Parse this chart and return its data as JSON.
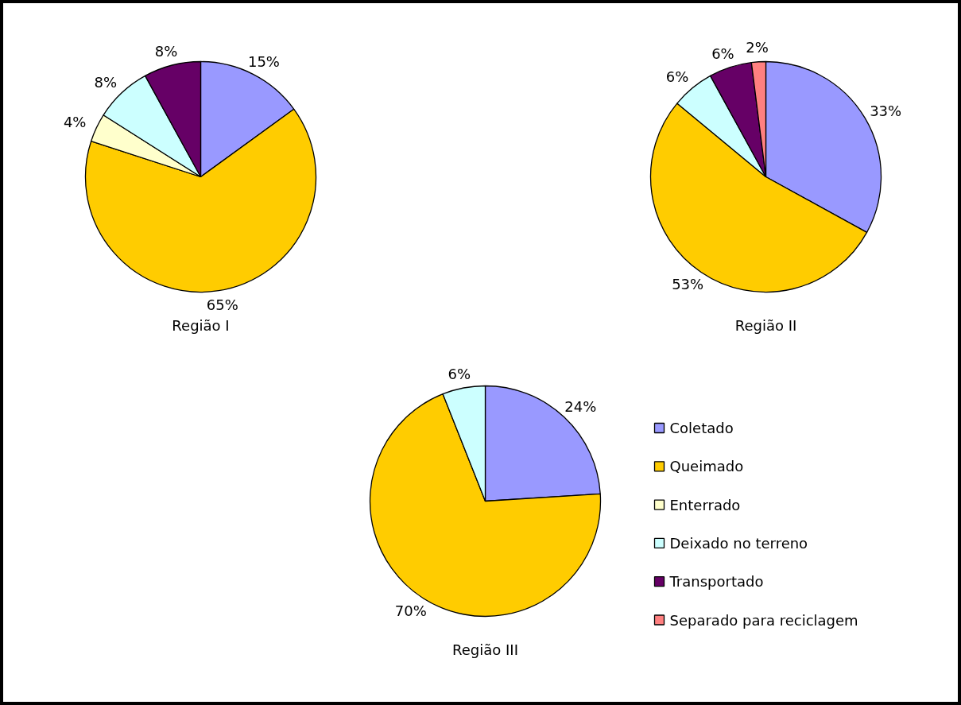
{
  "chart_data": {
    "type": "pie",
    "categories": [
      "Coletado",
      "Queimado",
      "Enterrado",
      "Deixado no terreno",
      "Transportado",
      "Separado para reciclagem"
    ],
    "colors": [
      "#9999ff",
      "#ffcc00",
      "#ffffcc",
      "#ccffff",
      "#660066",
      "#ff8080"
    ],
    "series": [
      {
        "name": "Região I",
        "values": [
          15,
          65,
          4,
          8,
          8,
          null
        ],
        "value_labels": [
          "15%",
          "65%",
          "4%",
          "8%",
          "8%",
          null
        ]
      },
      {
        "name": "Região II",
        "values": [
          33,
          53,
          null,
          6,
          6,
          2
        ],
        "value_labels": [
          "33%",
          "53%",
          null,
          "6%",
          "6%",
          "2%"
        ]
      },
      {
        "name": "Região III",
        "values": [
          24,
          70,
          null,
          6,
          null,
          null
        ],
        "value_labels": [
          "24%",
          "70%",
          null,
          "6%",
          null,
          null
        ]
      }
    ],
    "legend": "bottom right"
  }
}
